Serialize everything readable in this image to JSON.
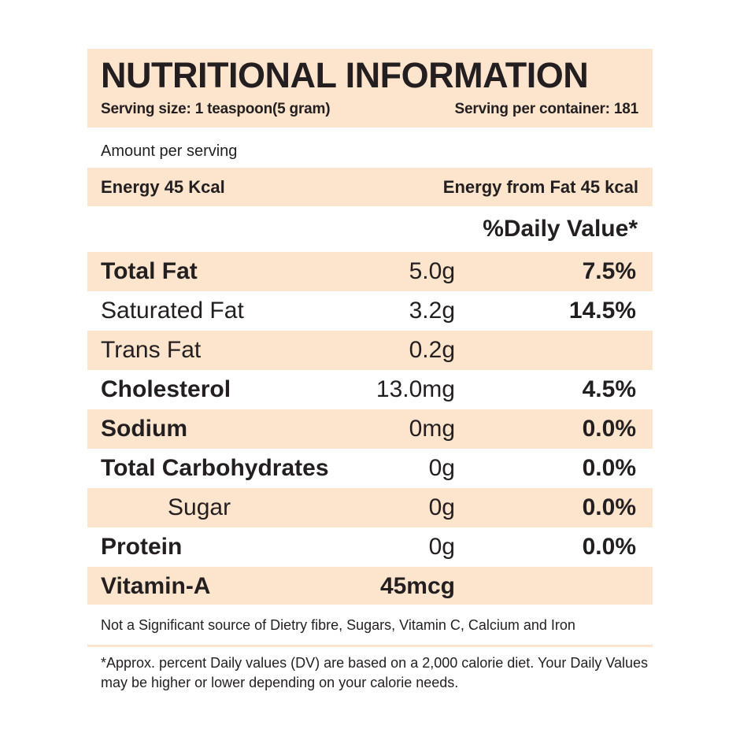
{
  "header": {
    "title": "NUTRITIONAL INFORMATION",
    "serving_size": "Serving size: 1 teaspoon(5 gram)",
    "servings_per_container": "Serving per container: 181"
  },
  "amount_per_serving": "Amount per serving",
  "energy": {
    "left": "Energy 45 Kcal",
    "right": "Energy from Fat 45 kcal"
  },
  "daily_value_header": "%Daily Value*",
  "rows": [
    {
      "name": "Total Fat",
      "amount": "5.0g",
      "dv": "7.5%"
    },
    {
      "name": "Saturated Fat",
      "amount": "3.2g",
      "dv": "14.5%"
    },
    {
      "name": "Trans Fat",
      "amount": "0.2g",
      "dv": ""
    },
    {
      "name": "Cholesterol",
      "amount": "13.0mg",
      "dv": "4.5%"
    },
    {
      "name": "Sodium",
      "amount": "0mg",
      "dv": "0.0%"
    },
    {
      "name": "Total Carbohydrates",
      "amount": "0g",
      "dv": "0.0%"
    },
    {
      "name": "Sugar",
      "amount": "0g",
      "dv": "0.0%"
    },
    {
      "name": "Protein",
      "amount": "0g",
      "dv": "0.0%"
    },
    {
      "name": "Vitamin-A",
      "amount": "45mcg",
      "dv": ""
    }
  ],
  "not_significant": "Not a Significant source of Dietry fibre, Sugars, Vitamin C, Calcium and Iron",
  "footnote": "*Approx. percent Daily values (DV) are based on a 2,000 calorie diet. Your Daily Values may be higher or lower depending on your calorie needs.",
  "colors": {
    "band": "#fde4cd",
    "text": "#231f20"
  }
}
